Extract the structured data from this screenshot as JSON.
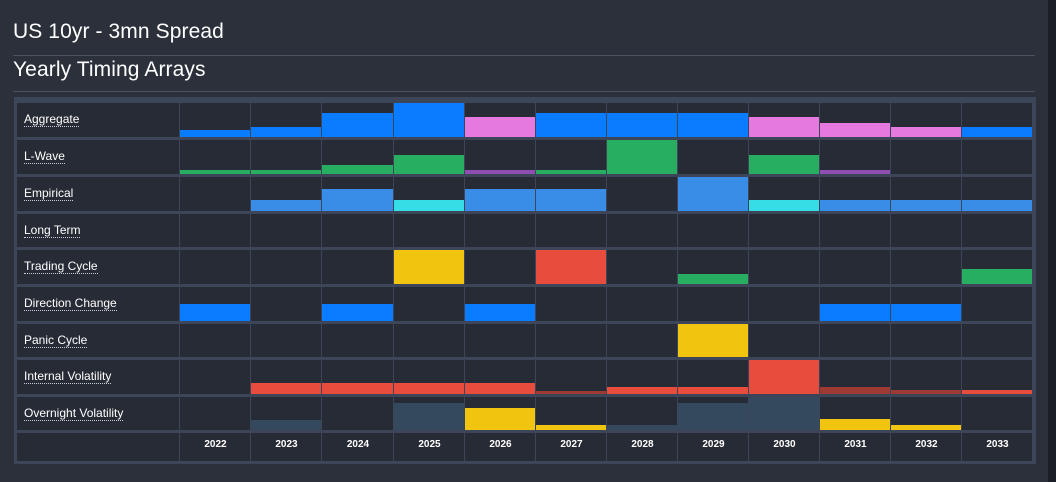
{
  "header": {
    "title": "US 10yr - 3mn Spread",
    "subtitle": "Yearly Timing Arrays"
  },
  "colors": {
    "blue": "#0a7cff",
    "lightblue": "#3a8de6",
    "cyan": "#36dce6",
    "pink": "#e679e0",
    "green": "#27ae60",
    "purple": "#8f4fb2",
    "yellow": "#f1c40f",
    "red": "#e74c3c",
    "darkred": "#9c3a33",
    "slate": "#34495e"
  },
  "years": [
    "2022",
    "2023",
    "2024",
    "2025",
    "2026",
    "2027",
    "2028",
    "2029",
    "2030",
    "2031",
    "2032",
    "2033"
  ],
  "rows": [
    {
      "label": "Aggregate",
      "bars": [
        {
          "level": 0.2,
          "color": "blue"
        },
        {
          "level": 0.28,
          "color": "blue"
        },
        {
          "level": 0.7,
          "color": "blue"
        },
        {
          "level": 1.0,
          "color": "blue"
        },
        {
          "level": 0.6,
          "color": "pink"
        },
        {
          "level": 0.7,
          "color": "blue"
        },
        {
          "level": 0.7,
          "color": "blue"
        },
        {
          "level": 0.7,
          "color": "blue"
        },
        {
          "level": 0.6,
          "color": "pink"
        },
        {
          "level": 0.4,
          "color": "pink"
        },
        {
          "level": 0.3,
          "color": "pink"
        },
        {
          "level": 0.28,
          "color": "blue"
        }
      ]
    },
    {
      "label": "L-Wave",
      "bars": [
        {
          "level": 0.13,
          "color": "green"
        },
        {
          "level": 0.13,
          "color": "green"
        },
        {
          "level": 0.26,
          "color": "green"
        },
        {
          "level": 0.55,
          "color": "green"
        },
        {
          "level": 0.13,
          "color": "purple"
        },
        {
          "level": 0.13,
          "color": "green"
        },
        {
          "level": 1.0,
          "color": "green"
        },
        {
          "level": 0,
          "color": "green"
        },
        {
          "level": 0.55,
          "color": "green"
        },
        {
          "level": 0.13,
          "color": "purple"
        },
        {
          "level": 0,
          "color": "green"
        },
        {
          "level": 0,
          "color": "green"
        }
      ]
    },
    {
      "label": "Empirical",
      "bars": [
        {
          "level": 0,
          "color": "lightblue"
        },
        {
          "level": 0.33,
          "color": "lightblue"
        },
        {
          "level": 0.66,
          "color": "lightblue"
        },
        {
          "level": 0.33,
          "color": "cyan"
        },
        {
          "level": 0.66,
          "color": "lightblue"
        },
        {
          "level": 0.66,
          "color": "lightblue"
        },
        {
          "level": 0,
          "color": "lightblue"
        },
        {
          "level": 1.0,
          "color": "lightblue"
        },
        {
          "level": 0.33,
          "color": "cyan"
        },
        {
          "level": 0.33,
          "color": "lightblue"
        },
        {
          "level": 0.33,
          "color": "lightblue"
        },
        {
          "level": 0.33,
          "color": "lightblue"
        }
      ]
    },
    {
      "label": "Long Term",
      "bars": [
        {
          "level": 0,
          "color": "blue"
        },
        {
          "level": 0,
          "color": "blue"
        },
        {
          "level": 0,
          "color": "blue"
        },
        {
          "level": 0,
          "color": "blue"
        },
        {
          "level": 0,
          "color": "blue"
        },
        {
          "level": 0,
          "color": "blue"
        },
        {
          "level": 0,
          "color": "blue"
        },
        {
          "level": 0,
          "color": "blue"
        },
        {
          "level": 0,
          "color": "blue"
        },
        {
          "level": 0,
          "color": "blue"
        },
        {
          "level": 0,
          "color": "blue"
        },
        {
          "level": 0,
          "color": "blue"
        }
      ]
    },
    {
      "label": "Trading Cycle",
      "bars": [
        {
          "level": 0,
          "color": "yellow"
        },
        {
          "level": 0,
          "color": "yellow"
        },
        {
          "level": 0,
          "color": "yellow"
        },
        {
          "level": 1.0,
          "color": "yellow"
        },
        {
          "level": 0,
          "color": "yellow"
        },
        {
          "level": 1.0,
          "color": "red"
        },
        {
          "level": 0,
          "color": "yellow"
        },
        {
          "level": 0.3,
          "color": "green"
        },
        {
          "level": 0,
          "color": "yellow"
        },
        {
          "level": 0,
          "color": "yellow"
        },
        {
          "level": 0,
          "color": "yellow"
        },
        {
          "level": 0.45,
          "color": "green"
        }
      ]
    },
    {
      "label": "Direction Change",
      "bars": [
        {
          "level": 0.5,
          "color": "blue"
        },
        {
          "level": 0,
          "color": "blue"
        },
        {
          "level": 0.5,
          "color": "blue"
        },
        {
          "level": 0,
          "color": "blue"
        },
        {
          "level": 0.5,
          "color": "blue"
        },
        {
          "level": 0,
          "color": "blue"
        },
        {
          "level": 0,
          "color": "blue"
        },
        {
          "level": 0,
          "color": "blue"
        },
        {
          "level": 0,
          "color": "blue"
        },
        {
          "level": 0.5,
          "color": "blue"
        },
        {
          "level": 0.5,
          "color": "blue"
        },
        {
          "level": 0,
          "color": "blue"
        }
      ]
    },
    {
      "label": "Panic Cycle",
      "bars": [
        {
          "level": 0,
          "color": "yellow"
        },
        {
          "level": 0,
          "color": "yellow"
        },
        {
          "level": 0,
          "color": "yellow"
        },
        {
          "level": 0,
          "color": "yellow"
        },
        {
          "level": 0,
          "color": "yellow"
        },
        {
          "level": 0,
          "color": "yellow"
        },
        {
          "level": 0,
          "color": "yellow"
        },
        {
          "level": 1.0,
          "color": "yellow"
        },
        {
          "level": 0,
          "color": "yellow"
        },
        {
          "level": 0,
          "color": "yellow"
        },
        {
          "level": 0,
          "color": "yellow"
        },
        {
          "level": 0,
          "color": "yellow"
        }
      ]
    },
    {
      "label": "Internal Volatility",
      "bars": [
        {
          "level": 0,
          "color": "red"
        },
        {
          "level": 0.32,
          "color": "red"
        },
        {
          "level": 0.32,
          "color": "red"
        },
        {
          "level": 0.32,
          "color": "red"
        },
        {
          "level": 0.32,
          "color": "red"
        },
        {
          "level": 0.1,
          "color": "darkred"
        },
        {
          "level": 0.2,
          "color": "red"
        },
        {
          "level": 0.2,
          "color": "red"
        },
        {
          "level": 1.0,
          "color": "red"
        },
        {
          "level": 0.2,
          "color": "darkred"
        },
        {
          "level": 0.13,
          "color": "darkred"
        },
        {
          "level": 0.13,
          "color": "red"
        }
      ]
    },
    {
      "label": "Overnight Volatility",
      "bars": [
        {
          "level": 0,
          "color": "slate"
        },
        {
          "level": 0.3,
          "color": "slate"
        },
        {
          "level": 0,
          "color": "slate"
        },
        {
          "level": 0.82,
          "color": "slate"
        },
        {
          "level": 0.66,
          "color": "yellow"
        },
        {
          "level": 0.16,
          "color": "yellow"
        },
        {
          "level": 0.16,
          "color": "slate"
        },
        {
          "level": 0.82,
          "color": "slate"
        },
        {
          "level": 1.0,
          "color": "slate"
        },
        {
          "level": 0.33,
          "color": "yellow"
        },
        {
          "level": 0.16,
          "color": "yellow"
        },
        {
          "level": 0,
          "color": "slate"
        }
      ]
    }
  ]
}
